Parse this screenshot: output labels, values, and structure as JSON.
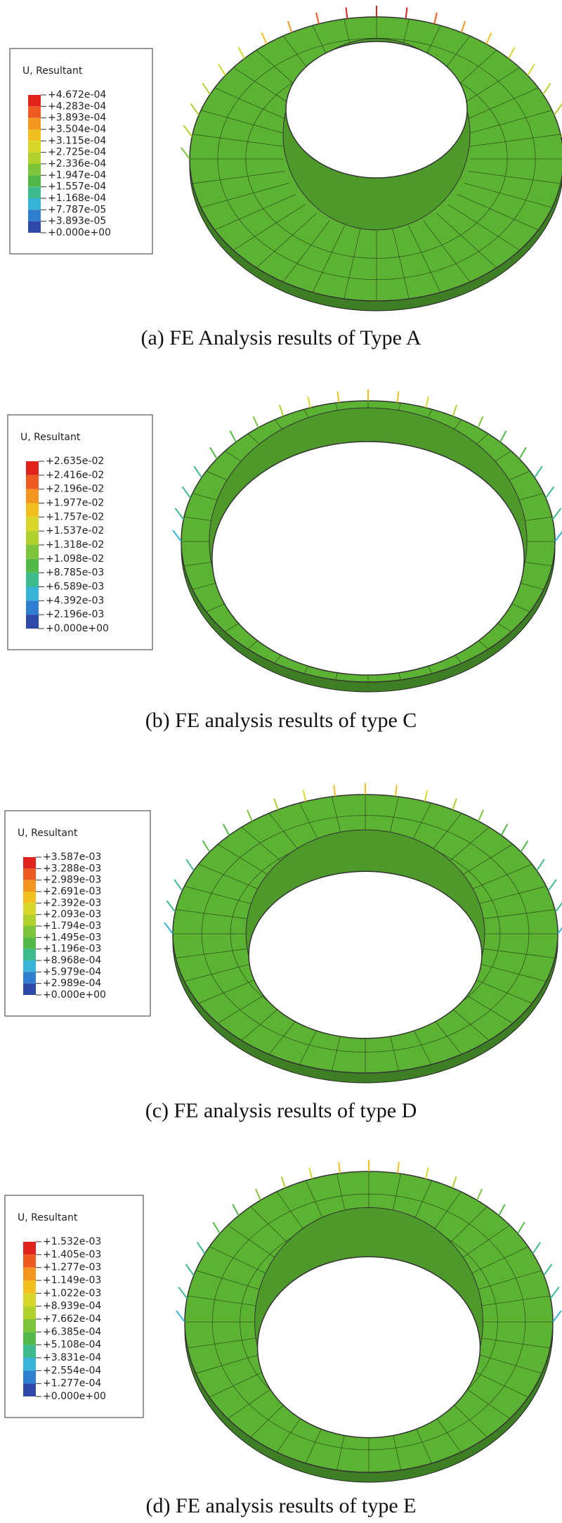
{
  "panels": [
    {
      "legend": {
        "title": "U, Resultant",
        "labels": [
          "+4.672e-04",
          "+4.283e-04",
          "+3.893e-04",
          "+3.504e-04",
          "+3.115e-04",
          "+2.725e-04",
          "+2.336e-04",
          "+1.947e-04",
          "+1.557e-04",
          "+1.168e-04",
          "+7.787e-05",
          "+3.893e-05",
          "+0.000e+00"
        ]
      },
      "caption": "(a) FE Analysis results of Type A"
    },
    {
      "legend": {
        "title": "U, Resultant",
        "labels": [
          "+2.635e-02",
          "+2.416e-02",
          "+2.196e-02",
          "+1.977e-02",
          "+1.757e-02",
          "+1.537e-02",
          "+1.318e-02",
          "+1.098e-02",
          "+8.785e-03",
          "+6.589e-03",
          "+4.392e-03",
          "+2.196e-03",
          "+0.000e+00"
        ]
      },
      "caption": "(b) FE analysis results of type C"
    },
    {
      "legend": {
        "title": "U, Resultant",
        "labels": [
          "+3.587e-03",
          "+3.288e-03",
          "+2.989e-03",
          "+2.691e-03",
          "+2.392e-03",
          "+2.093e-03",
          "+1.794e-03",
          "+1.495e-03",
          "+1.196e-03",
          "+8.968e-04",
          "+5.979e-04",
          "+2.989e-04",
          "+0.000e+00"
        ]
      },
      "caption": "(c) FE analysis results of type D"
    },
    {
      "legend": {
        "title": "U, Resultant",
        "labels": [
          "+1.532e-03",
          "+1.405e-03",
          "+1.277e-03",
          "+1.149e-03",
          "+1.022e-03",
          "+8.939e-04",
          "+7.662e-04",
          "+6.385e-04",
          "+5.108e-04",
          "+3.831e-04",
          "+2.554e-04",
          "+1.277e-04",
          "+0.000e+00"
        ]
      },
      "caption": "(d) FE analysis results of type E"
    }
  ]
}
